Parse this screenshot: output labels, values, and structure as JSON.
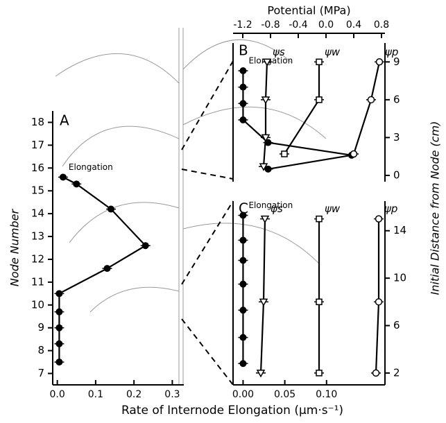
{
  "figure": {
    "x_label": "Rate of Internode Elongation (μm·s⁻¹)",
    "y2_label": "Initial Distance from Node (cm)"
  },
  "chart_data": [
    {
      "type": "line",
      "panel_label": "A",
      "y_label": "Node Number",
      "xlim": [
        -0.012,
        0.33
      ],
      "xticks": [
        {
          "value": 0,
          "label": "0.0"
        },
        0.1,
        0.2,
        0.3
      ],
      "ylim": [
        6.5,
        18.5
      ],
      "yticks": [
        7,
        8,
        9,
        10,
        11,
        12,
        13,
        14,
        15,
        16,
        17,
        18
      ],
      "series": [
        {
          "name": "Elongation",
          "color": "#000000",
          "marker": "filled-circle",
          "x": [
            0.015,
            0.05,
            0.14,
            0.23,
            0.13,
            0.005,
            0.005,
            0.005,
            0.005,
            0.005
          ],
          "values": [
            15.6,
            15.3,
            14.2,
            12.6,
            11.6,
            10.5,
            9.7,
            9.0,
            8.3,
            7.5
          ]
        }
      ]
    },
    {
      "type": "line",
      "panel_label": "B",
      "x2_label": "Potential (MPa)",
      "xlim": [
        -0.012,
        0.17
      ],
      "x2lim": [
        -1.34,
        0.85
      ],
      "x2ticks": [
        -1.2,
        -0.8,
        -0.4,
        {
          "value": 0,
          "label": "0.0"
        },
        0.4,
        0.8
      ],
      "ylim": [
        -0.5,
        10.5
      ],
      "yticks": [
        0,
        3,
        6,
        9
      ],
      "series": [
        {
          "name": "Elongation",
          "color": "#000000",
          "marker": "filled-circle",
          "x": [
            0,
            0,
            0,
            0,
            0.03,
            0.13,
            0.03
          ],
          "values": [
            8.3,
            7.0,
            5.7,
            4.4,
            2.6,
            1.6,
            0.5
          ]
        },
        {
          "name": "ψs",
          "color": "#000000",
          "marker": "triangle",
          "axis": "x2",
          "x": [
            -0.85,
            -0.87,
            -0.87,
            -0.9
          ],
          "values": [
            9,
            6,
            3,
            0.7
          ]
        },
        {
          "name": "ψw",
          "color": "#000000",
          "marker": "square",
          "axis": "x2",
          "x": [
            -0.1,
            -0.1,
            -0.6
          ],
          "values": [
            9,
            6,
            1.7
          ]
        },
        {
          "name": "ψp",
          "color": "#000000",
          "marker": "open-circle",
          "axis": "x2",
          "x": [
            0.77,
            0.65,
            0.4
          ],
          "values": [
            9,
            6,
            1.7
          ]
        }
      ]
    },
    {
      "type": "line",
      "panel_label": "C",
      "xlim": [
        -0.012,
        0.17
      ],
      "x2lim": [
        -1.34,
        0.85
      ],
      "xticks": [
        {
          "value": 0,
          "label": "0.00"
        },
        0.05,
        {
          "value": 0.1,
          "label": "0.10"
        }
      ],
      "ylim": [
        1,
        16.5
      ],
      "yticks": [
        2,
        6,
        10,
        14
      ],
      "series": [
        {
          "name": "Elongation",
          "color": "#000000",
          "marker": "filled-circle",
          "x": [
            0,
            0,
            0,
            0,
            0,
            0,
            0
          ],
          "values": [
            15.3,
            13.2,
            11.5,
            9.5,
            7.3,
            5.0,
            2.8
          ]
        },
        {
          "name": "ψs",
          "color": "#000000",
          "marker": "triangle",
          "axis": "x2",
          "x": [
            -0.88,
            -0.9,
            -0.94
          ],
          "values": [
            15,
            8,
            2
          ]
        },
        {
          "name": "ψw",
          "color": "#000000",
          "marker": "square",
          "axis": "x2",
          "x": [
            -0.1,
            -0.1,
            -0.1
          ],
          "values": [
            15,
            8,
            2
          ]
        },
        {
          "name": "ψp",
          "color": "#000000",
          "marker": "open-circle",
          "axis": "x2",
          "x": [
            0.76,
            0.76,
            0.72
          ],
          "values": [
            15,
            8,
            2
          ]
        }
      ]
    }
  ]
}
